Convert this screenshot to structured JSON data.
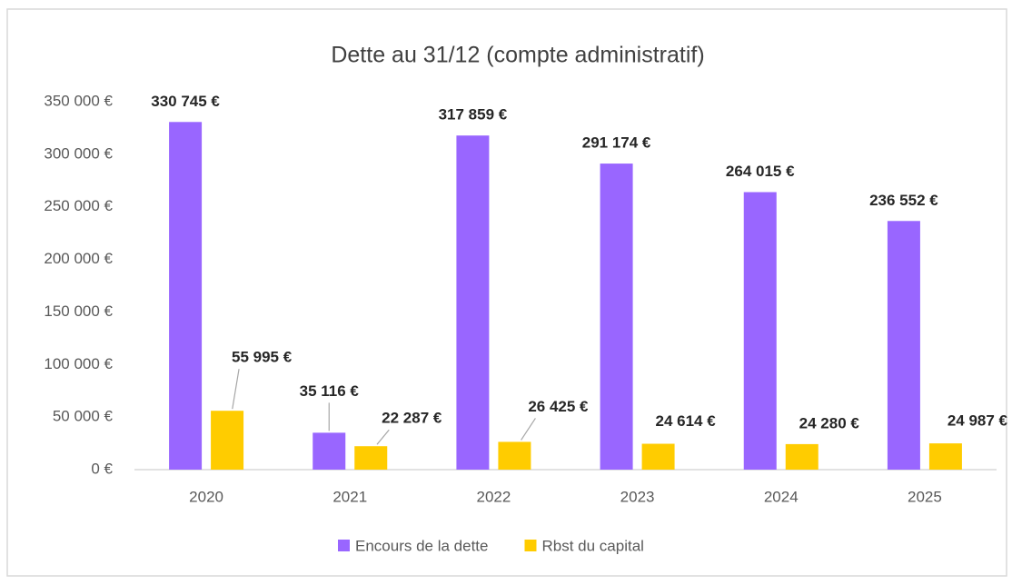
{
  "chart_data": {
    "type": "bar",
    "title": "Dette au 31/12 (compte administratif)",
    "categories": [
      "2020",
      "2021",
      "2022",
      "2023",
      "2024",
      "2025"
    ],
    "series": [
      {
        "name": "Encours de la dette",
        "color": "#9966ff",
        "values": [
          330745,
          35116,
          317859,
          291174,
          264015,
          236552
        ],
        "value_labels": [
          "330 745 €",
          "35 116 €",
          "317 859 €",
          "291 174 €",
          "264 015 €",
          "236 552 €"
        ]
      },
      {
        "name": "Rbst du capital",
        "color": "#ffcc00",
        "values": [
          55995,
          22287,
          26425,
          24614,
          24280,
          24987
        ],
        "value_labels": [
          "55 995 €",
          "22 287 €",
          "26 425 €",
          "24 614 €",
          "24 280 €",
          "24 987 €"
        ]
      }
    ],
    "ylim": [
      0,
      350000
    ],
    "yticks": [
      {
        "value": 0,
        "label": "0 €"
      },
      {
        "value": 50000,
        "label": "50 000 €"
      },
      {
        "value": 100000,
        "label": "100 000 €"
      },
      {
        "value": 150000,
        "label": "150 000 €"
      },
      {
        "value": 200000,
        "label": "200 000 €"
      },
      {
        "value": 250000,
        "label": "250 000 €"
      },
      {
        "value": 300000,
        "label": "300 000 €"
      },
      {
        "value": 350000,
        "label": "350 000 €"
      }
    ],
    "grid": false,
    "legend": "bottom"
  }
}
